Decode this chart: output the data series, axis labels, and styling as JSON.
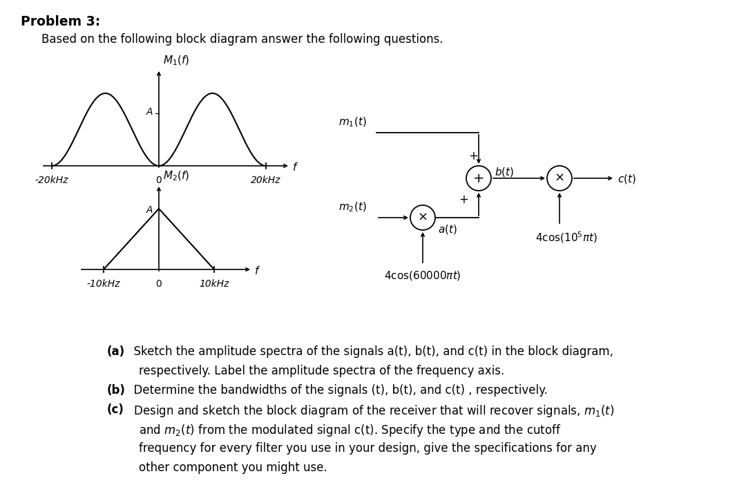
{
  "bg_color": "#ffffff",
  "title": "Problem 3:",
  "subtitle": "Based on the following block diagram answer the following questions.",
  "spectrum1_label": "$M_1(f)$",
  "spectrum2_label": "$M_2(f)$",
  "amp_label": "$A$",
  "freq_label": "$f$",
  "m1kHz": "-20kHz",
  "p1kHz": "20kHz",
  "m2kHz": "-10kHz",
  "p2kHz": "10kHz",
  "zero": "0",
  "m1t": "$m_1(t)$",
  "m2t": "$m_2(t)$",
  "at": "$a(t)$",
  "bt": "$b(t)$",
  "ct": "$c(t)$",
  "carrier1": "$4\\cos(60000\\pi t)$",
  "carrier2": "$4\\cos(10^5\\pi t)$",
  "qa_bold": "(a)",
  "qa_text": "  Sketch the amplitude spectra of the signals a(t), b(t), and c(t) in the block diagram,",
  "qa_cont": "      respectively. Label the amplitude spectra of the frequency axis.",
  "qb_bold": "(b)",
  "qb_text": "  Determine the bandwidths of the signals (t), b(t), and c(t) , respectively.",
  "qc_bold": "(c)",
  "qc_text": "  Design and sketch the block diagram of the receiver that will recover signals, $m_1(t)$",
  "qc_cont1": "      and $m_2(t)$ from the modulated signal c(t). Specify the type and the cutoff",
  "qc_cont2": "      frequency for every filter you use in your design, give the specifications for any",
  "qc_cont3": "      other component you might use."
}
